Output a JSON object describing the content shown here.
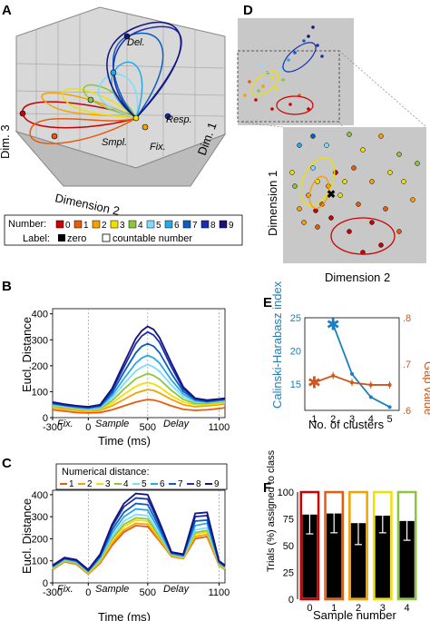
{
  "colors": {
    "numbers": [
      "#cc0000",
      "#e85a0c",
      "#f5a100",
      "#f0e000",
      "#8cc63e",
      "#7fdcff",
      "#29a8e6",
      "#0a5fbf",
      "#1a2faf",
      "#16137a"
    ],
    "gray_bg": "#c8c8c8",
    "calinski": "#1a7fc0",
    "gap": "#d0561a",
    "bar_outline": [
      "#cc0000",
      "#e85a0c",
      "#f5a100",
      "#f0e000",
      "#8cc63e"
    ]
  },
  "panel_a": {
    "letter": "A",
    "axis_labels": {
      "dim1": "Dim. 1",
      "dim2": "Dimension 2",
      "dim3": "Dim. 3"
    },
    "annotations": [
      "Del.",
      "Resp.",
      "Smpl.",
      "Fix."
    ],
    "legend": {
      "number_label": "Number:",
      "numbers": [
        "0",
        "1",
        "2",
        "3",
        "4",
        "5",
        "6",
        "7",
        "8",
        "9"
      ],
      "label_title": "Label:",
      "zero_label": "zero",
      "countable_label": "countable number"
    }
  },
  "panel_d": {
    "letter": "D",
    "xlabel": "Dimension 2",
    "ylabel": "Dimension 1"
  },
  "panel_b": {
    "letter": "B",
    "ylabel": "Eucl. Distance",
    "xlabel": "Time (ms)",
    "epochs": [
      "Fix.",
      "Sample",
      "Delay"
    ]
  },
  "panel_c": {
    "letter": "C",
    "ylabel": "Eucl. Distance",
    "xlabel": "Time (ms)",
    "epochs": [
      "Fix.",
      "Sample",
      "Delay"
    ],
    "legend_title": "Numerical distance:",
    "legend_items": [
      "1",
      "2",
      "3",
      "4",
      "5",
      "6",
      "7",
      "8",
      "9"
    ]
  },
  "panel_e": {
    "letter": "E",
    "ylabel_left": "Calinski-Harabasz index",
    "ylabel_right": "Gap value",
    "xlabel": "No. of clusters"
  },
  "panel_f": {
    "letter": "F",
    "ylabel": "Trials (%) assigned to class",
    "xlabel": "Sample number"
  },
  "chart_data": [
    {
      "id": "B",
      "type": "line",
      "xlabel": "Time (ms)",
      "ylabel": "Eucl. Distance",
      "xlim": [
        -300,
        1150
      ],
      "ylim": [
        0,
        420
      ],
      "xticks": [
        -300,
        0,
        500,
        1100
      ],
      "yticks": [
        0,
        100,
        200,
        300,
        400
      ],
      "vlines": [
        0,
        500,
        1100
      ],
      "x": [
        -300,
        -200,
        -100,
        0,
        100,
        200,
        300,
        400,
        450,
        500,
        550,
        600,
        700,
        800,
        900,
        1000,
        1100,
        1150
      ],
      "series": [
        {
          "name": "1",
          "values": [
            30,
            25,
            20,
            18,
            20,
            30,
            45,
            60,
            65,
            70,
            68,
            62,
            45,
            32,
            28,
            30,
            35,
            38
          ]
        },
        {
          "name": "2",
          "values": [
            38,
            33,
            28,
            25,
            28,
            45,
            70,
            95,
            102,
            108,
            105,
            95,
            70,
            50,
            42,
            45,
            50,
            52
          ]
        },
        {
          "name": "3",
          "values": [
            42,
            38,
            32,
            28,
            32,
            55,
            90,
            120,
            130,
            135,
            130,
            118,
            85,
            60,
            50,
            50,
            55,
            58
          ]
        },
        {
          "name": "4",
          "values": [
            45,
            40,
            35,
            30,
            35,
            65,
            110,
            150,
            160,
            170,
            162,
            148,
            105,
            70,
            55,
            55,
            60,
            62
          ]
        },
        {
          "name": "5",
          "values": [
            48,
            43,
            38,
            32,
            38,
            75,
            130,
            180,
            195,
            205,
            195,
            178,
            125,
            80,
            60,
            58,
            62,
            65
          ]
        },
        {
          "name": "6",
          "values": [
            52,
            46,
            40,
            35,
            42,
            85,
            150,
            210,
            230,
            240,
            230,
            210,
            145,
            90,
            65,
            60,
            65,
            68
          ]
        },
        {
          "name": "7",
          "values": [
            55,
            48,
            42,
            38,
            45,
            95,
            175,
            250,
            275,
            285,
            275,
            250,
            170,
            100,
            70,
            62,
            68,
            70
          ]
        },
        {
          "name": "8",
          "values": [
            58,
            50,
            45,
            40,
            48,
            105,
            195,
            285,
            315,
            330,
            318,
            290,
            195,
            110,
            72,
            65,
            70,
            72
          ]
        },
        {
          "name": "9",
          "values": [
            60,
            52,
            46,
            42,
            50,
            112,
            210,
            305,
            335,
            352,
            340,
            308,
            210,
            118,
            75,
            68,
            72,
            75
          ]
        }
      ]
    },
    {
      "id": "C",
      "type": "line",
      "xlabel": "Time (ms)",
      "ylabel": "Eucl. Distance",
      "xlim": [
        -300,
        1150
      ],
      "ylim": [
        0,
        420
      ],
      "xticks": [
        -300,
        0,
        500,
        1100
      ],
      "yticks": [
        0,
        100,
        200,
        300,
        400
      ],
      "vlines": [
        0,
        500,
        1100
      ],
      "legend_title": "Numerical distance:",
      "x": [
        -300,
        -200,
        -100,
        0,
        100,
        200,
        300,
        400,
        500,
        600,
        700,
        800,
        900,
        1000,
        1100,
        1150
      ],
      "series": [
        {
          "name": "1",
          "values": [
            60,
            95,
            85,
            40,
            90,
            170,
            230,
            260,
            255,
            190,
            120,
            110,
            200,
            210,
            80,
            60
          ]
        },
        {
          "name": "2",
          "values": [
            62,
            98,
            88,
            42,
            95,
            180,
            240,
            270,
            265,
            195,
            122,
            112,
            210,
            220,
            82,
            62
          ]
        },
        {
          "name": "3",
          "values": [
            65,
            100,
            90,
            45,
            100,
            190,
            255,
            285,
            280,
            205,
            125,
            115,
            220,
            230,
            85,
            65
          ]
        },
        {
          "name": "4",
          "values": [
            68,
            102,
            92,
            48,
            105,
            200,
            265,
            295,
            290,
            210,
            128,
            118,
            228,
            238,
            88,
            68
          ]
        },
        {
          "name": "5",
          "values": [
            70,
            105,
            95,
            50,
            110,
            210,
            280,
            310,
            305,
            220,
            130,
            120,
            240,
            250,
            90,
            70
          ]
        },
        {
          "name": "6",
          "values": [
            72,
            108,
            98,
            52,
            115,
            225,
            300,
            335,
            330,
            235,
            132,
            122,
            260,
            270,
            92,
            72
          ]
        },
        {
          "name": "7",
          "values": [
            75,
            110,
            100,
            55,
            120,
            240,
            320,
            360,
            355,
            250,
            135,
            125,
            280,
            285,
            95,
            75
          ]
        },
        {
          "name": "8",
          "values": [
            78,
            112,
            102,
            58,
            125,
            255,
            345,
            385,
            380,
            265,
            138,
            128,
            300,
            305,
            98,
            78
          ]
        },
        {
          "name": "9",
          "values": [
            80,
            115,
            105,
            60,
            130,
            265,
            360,
            405,
            400,
            275,
            140,
            130,
            315,
            320,
            100,
            80
          ]
        }
      ]
    },
    {
      "id": "E",
      "type": "line",
      "xlabel": "No. of clusters",
      "ylabel": "Calinski-Harabasz index",
      "y2label": "Gap value",
      "x": [
        1,
        2,
        3,
        4,
        5
      ],
      "ylim": [
        11,
        25
      ],
      "y2lim": [
        0.6,
        0.8
      ],
      "yticks": [
        15,
        20,
        25
      ],
      "y2ticks": [
        0.6,
        0.7,
        0.8
      ],
      "series": [
        {
          "axis": "left",
          "values": [
            null,
            24,
            16.5,
            13,
            11.5
          ]
        },
        {
          "axis": "right",
          "values": [
            0.66,
            0.675,
            0.66,
            0.655,
            0.655
          ]
        }
      ],
      "markers": {
        "left_star_at": 2,
        "right_star_at": 1
      }
    },
    {
      "id": "F",
      "type": "bar",
      "xlabel": "Sample number",
      "ylabel": "Trials (%) assigned to class",
      "categories": [
        "0",
        "1",
        "2",
        "3",
        "4"
      ],
      "values": [
        79,
        80,
        71,
        78,
        73
      ],
      "errors": [
        18,
        18,
        20,
        16,
        18
      ],
      "ylim": [
        0,
        100
      ],
      "yticks": [
        0,
        25,
        50,
        75,
        100
      ]
    }
  ]
}
